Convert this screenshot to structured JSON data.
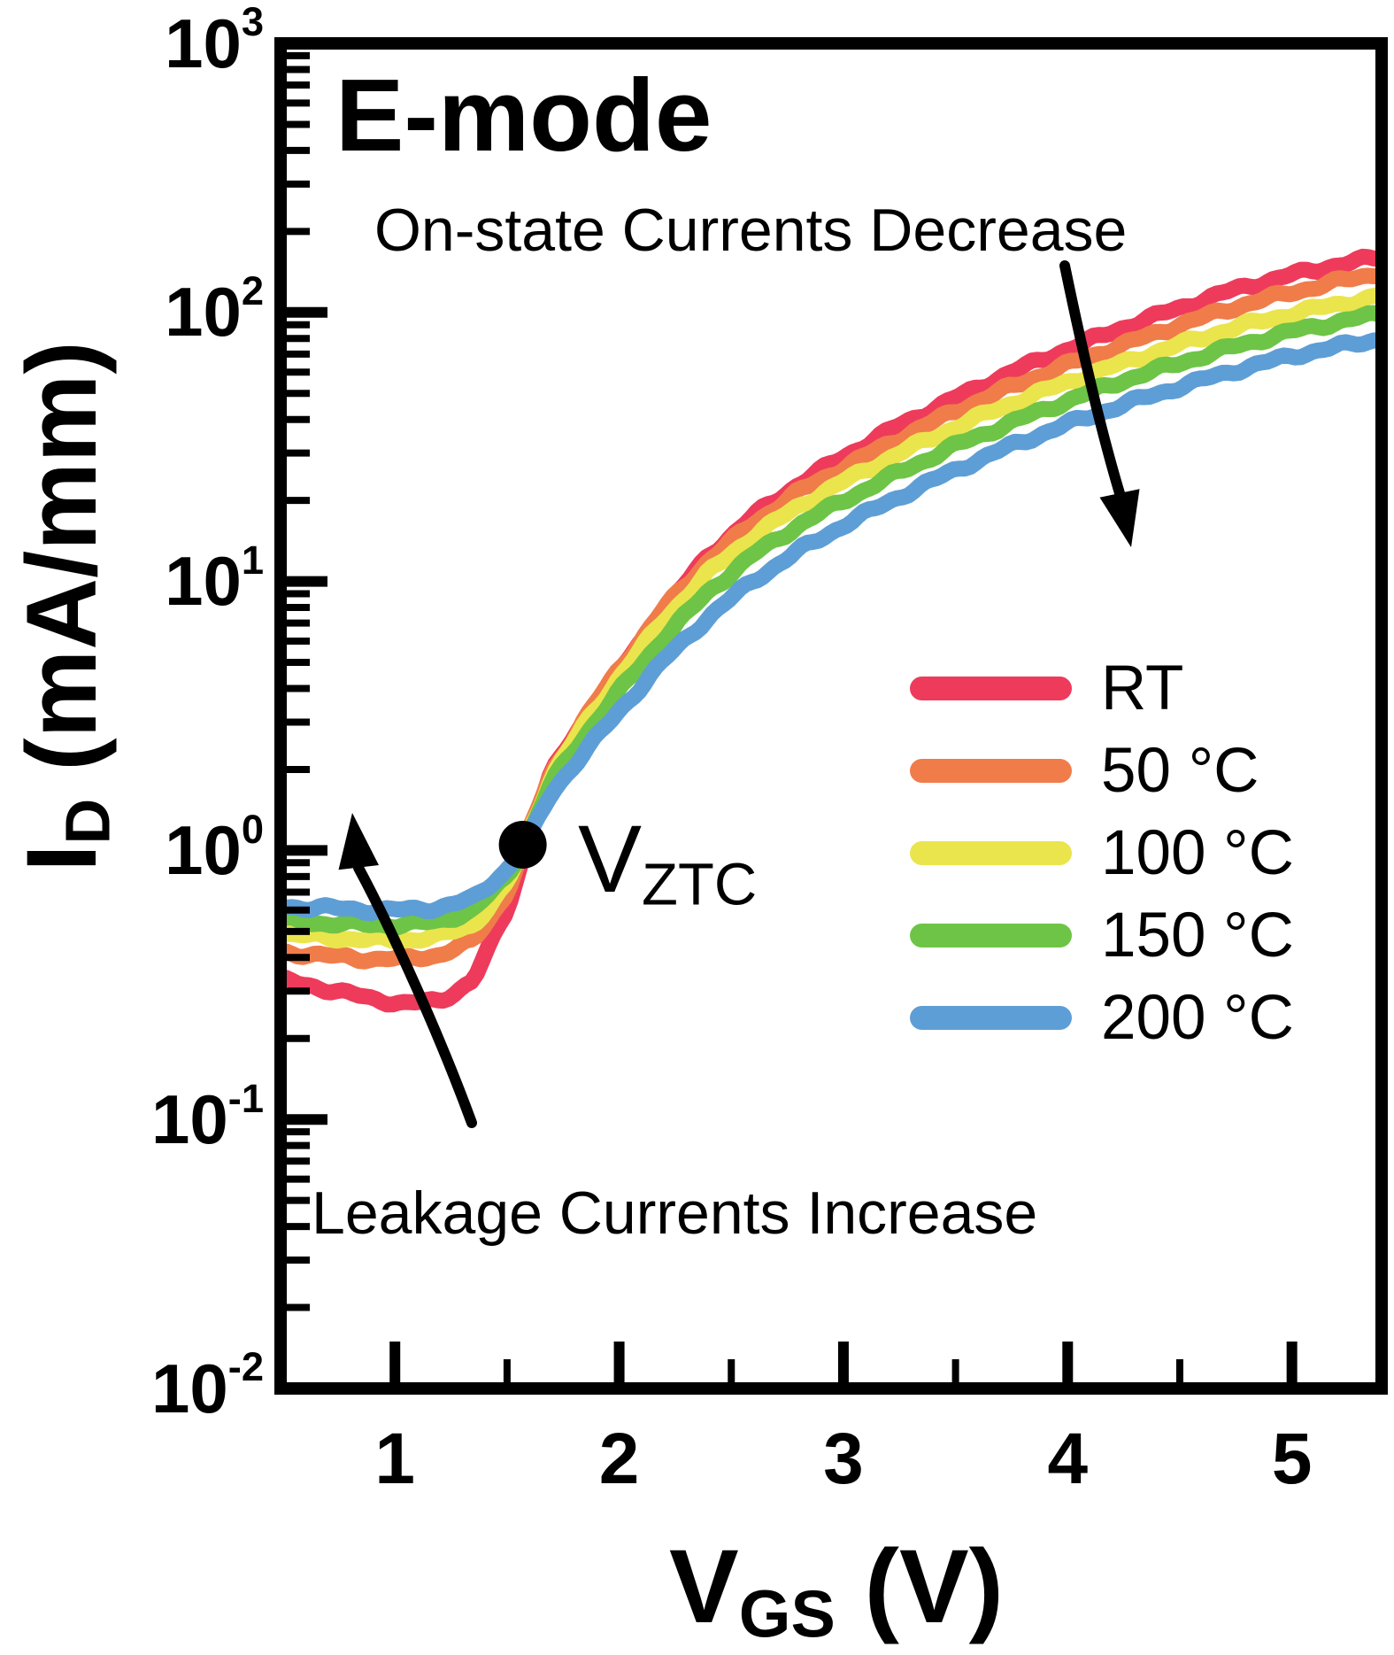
{
  "figure": {
    "bg": "#ffffff",
    "ink": "#000000"
  },
  "title": "E-mode",
  "annotations": {
    "on_state": "On-state Currents Decrease",
    "leakage": "Leakage Currents Increase",
    "ztc": {
      "main": "V",
      "sub": "ZTC"
    }
  },
  "axes": {
    "x": {
      "label_main": "V",
      "label_sub": "GS",
      "label_unit": " (V)",
      "min": 0.49,
      "max": 5.4,
      "major_ticks": [
        1,
        2,
        3,
        4,
        5
      ],
      "major_labels": [
        "1",
        "2",
        "3",
        "4",
        "5"
      ],
      "minor_ticks": [
        0.5,
        1.5,
        2.5,
        3.5,
        4.5
      ]
    },
    "y": {
      "label_main": "I",
      "label_sub": "D",
      "label_unit": " (mA/mm)",
      "scale": "log",
      "min": 0.01,
      "max": 1000,
      "major_exponents": [
        3,
        2,
        1,
        0,
        -1,
        -2
      ],
      "tick_labels": [
        {
          "base": "10",
          "exp": "3"
        },
        {
          "base": "10",
          "exp": "2"
        },
        {
          "base": "10",
          "exp": "1"
        },
        {
          "base": "10",
          "exp": "0"
        },
        {
          "base": "10",
          "exp": "-1"
        },
        {
          "base": "10",
          "exp": "-2"
        }
      ]
    }
  },
  "legend": {
    "items": [
      {
        "label": "RT",
        "color": "#EE3B5B"
      },
      {
        "label": "50 °C",
        "color": "#F07C4A"
      },
      {
        "label": "100 °C",
        "color": "#EAE54C"
      },
      {
        "label": "150 °C",
        "color": "#6EC446"
      },
      {
        "label": "200 °C",
        "color": "#5E9ED6"
      }
    ]
  },
  "chart_data": {
    "type": "line",
    "title": "E-mode",
    "xlabel": "V_GS (V)",
    "ylabel": "I_D (mA/mm)",
    "x_range": [
      0.49,
      5.4
    ],
    "y_range_log": [
      0.01,
      1000
    ],
    "grid": false,
    "legend_position": "center-right",
    "ztc_point": {
      "v_gs": 1.57,
      "i_d": 1.05
    },
    "series": [
      {
        "name": "RT",
        "color": "#EE3B5B",
        "points": [
          [
            0.49,
            0.33
          ],
          [
            0.7,
            0.305
          ],
          [
            0.9,
            0.28
          ],
          [
            1.05,
            0.27
          ],
          [
            1.2,
            0.275
          ],
          [
            1.35,
            0.33
          ],
          [
            1.5,
            0.6
          ],
          [
            1.6,
            1.15
          ],
          [
            1.7,
            1.95
          ],
          [
            1.85,
            3.1
          ],
          [
            2.0,
            4.6
          ],
          [
            2.2,
            7.8
          ],
          [
            2.4,
            12.5
          ],
          [
            2.6,
            17.5
          ],
          [
            2.8,
            23
          ],
          [
            3.0,
            29
          ],
          [
            3.25,
            38
          ],
          [
            3.5,
            48
          ],
          [
            3.75,
            60
          ],
          [
            4.0,
            73
          ],
          [
            4.25,
            88
          ],
          [
            4.5,
            104
          ],
          [
            4.75,
            122
          ],
          [
            5.0,
            138
          ],
          [
            5.2,
            150
          ],
          [
            5.4,
            161
          ]
        ]
      },
      {
        "name": "50 °C",
        "color": "#F07C4A",
        "points": [
          [
            0.49,
            0.42
          ],
          [
            0.7,
            0.405
          ],
          [
            0.9,
            0.395
          ],
          [
            1.05,
            0.395
          ],
          [
            1.2,
            0.41
          ],
          [
            1.35,
            0.46
          ],
          [
            1.5,
            0.7
          ],
          [
            1.6,
            1.18
          ],
          [
            1.7,
            1.95
          ],
          [
            1.85,
            3.1
          ],
          [
            2.0,
            4.7
          ],
          [
            2.2,
            7.9
          ],
          [
            2.4,
            12.0
          ],
          [
            2.6,
            16.5
          ],
          [
            2.8,
            21.5
          ],
          [
            3.0,
            26.5
          ],
          [
            3.25,
            34
          ],
          [
            3.5,
            43
          ],
          [
            3.75,
            53
          ],
          [
            4.0,
            64
          ],
          [
            4.25,
            76
          ],
          [
            4.5,
            90
          ],
          [
            4.75,
            105
          ],
          [
            5.0,
            119
          ],
          [
            5.2,
            130
          ],
          [
            5.4,
            141
          ]
        ]
      },
      {
        "name": "100 °C",
        "color": "#EAE54C",
        "points": [
          [
            0.49,
            0.49
          ],
          [
            0.7,
            0.475
          ],
          [
            0.9,
            0.465
          ],
          [
            1.05,
            0.465
          ],
          [
            1.2,
            0.48
          ],
          [
            1.35,
            0.53
          ],
          [
            1.5,
            0.75
          ],
          [
            1.6,
            1.17
          ],
          [
            1.7,
            1.9
          ],
          [
            1.85,
            2.95
          ],
          [
            2.0,
            4.4
          ],
          [
            2.2,
            7.2
          ],
          [
            2.4,
            10.8
          ],
          [
            2.6,
            14.8
          ],
          [
            2.8,
            19
          ],
          [
            3.0,
            23.5
          ],
          [
            3.25,
            30
          ],
          [
            3.5,
            37.5
          ],
          [
            3.75,
            46
          ],
          [
            4.0,
            55
          ],
          [
            4.25,
            65
          ],
          [
            4.5,
            76
          ],
          [
            4.75,
            88
          ],
          [
            5.0,
            99
          ],
          [
            5.2,
            107
          ],
          [
            5.4,
            115
          ]
        ]
      },
      {
        "name": "150 °C",
        "color": "#6EC446",
        "points": [
          [
            0.49,
            0.55
          ],
          [
            0.7,
            0.535
          ],
          [
            0.9,
            0.53
          ],
          [
            1.05,
            0.53
          ],
          [
            1.2,
            0.545
          ],
          [
            1.35,
            0.6
          ],
          [
            1.5,
            0.8
          ],
          [
            1.6,
            1.15
          ],
          [
            1.7,
            1.8
          ],
          [
            1.85,
            2.7
          ],
          [
            2.0,
            3.9
          ],
          [
            2.2,
            6.2
          ],
          [
            2.4,
            9.2
          ],
          [
            2.6,
            12.6
          ],
          [
            2.8,
            16.2
          ],
          [
            3.0,
            20
          ],
          [
            3.25,
            25.5
          ],
          [
            3.5,
            32
          ],
          [
            3.75,
            39
          ],
          [
            4.0,
            47
          ],
          [
            4.25,
            56
          ],
          [
            4.5,
            65
          ],
          [
            4.75,
            75
          ],
          [
            5.0,
            85
          ],
          [
            5.2,
            92
          ],
          [
            5.4,
            99
          ]
        ]
      },
      {
        "name": "200 °C",
        "color": "#5E9ED6",
        "points": [
          [
            0.49,
            0.62
          ],
          [
            0.7,
            0.61
          ],
          [
            0.9,
            0.6
          ],
          [
            1.05,
            0.6
          ],
          [
            1.2,
            0.615
          ],
          [
            1.35,
            0.66
          ],
          [
            1.5,
            0.85
          ],
          [
            1.6,
            1.12
          ],
          [
            1.7,
            1.65
          ],
          [
            1.85,
            2.35
          ],
          [
            2.0,
            3.3
          ],
          [
            2.2,
            5.1
          ],
          [
            2.4,
            7.4
          ],
          [
            2.6,
            10.1
          ],
          [
            2.8,
            13
          ],
          [
            3.0,
            16.2
          ],
          [
            3.25,
            20.7
          ],
          [
            3.5,
            26
          ],
          [
            3.75,
            32
          ],
          [
            4.0,
            38.5
          ],
          [
            4.25,
            45.5
          ],
          [
            4.5,
            53
          ],
          [
            4.75,
            61
          ],
          [
            5.0,
            69
          ],
          [
            5.2,
            74.5
          ],
          [
            5.4,
            80
          ]
        ]
      }
    ]
  }
}
